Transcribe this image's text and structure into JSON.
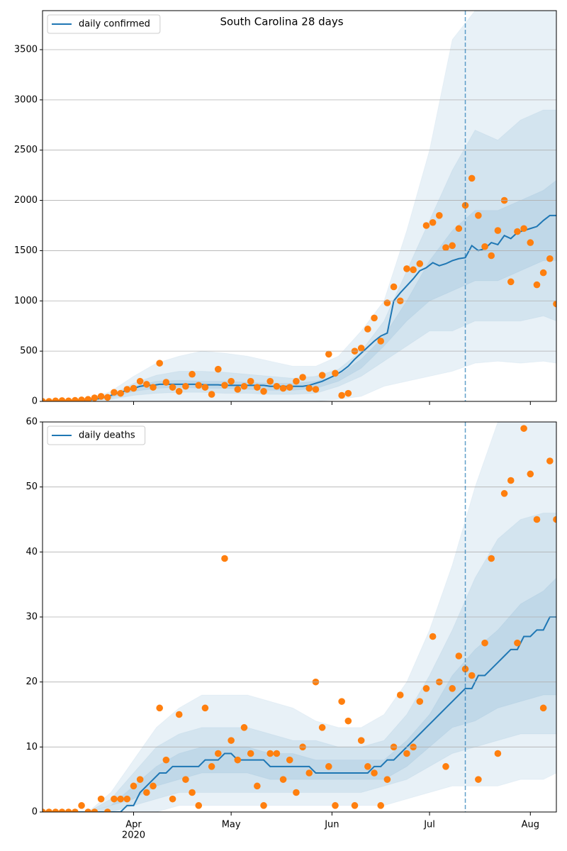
{
  "chart_data": [
    {
      "type": "line",
      "title": "South Carolina 28 days",
      "xlim": [
        3,
        161
      ],
      "xticks": [
        31,
        61,
        92,
        122,
        153
      ],
      "show_xtick_labels": false,
      "ylim": [
        0,
        3888
      ],
      "yticks": [
        0,
        500,
        1000,
        1500,
        2000,
        2500,
        3000,
        3500
      ],
      "grid": true,
      "legend": "upper left",
      "vline": 133,
      "x": [
        3,
        5,
        7,
        9,
        11,
        13,
        15,
        17,
        19,
        21,
        23,
        25,
        27,
        29,
        31,
        33,
        35,
        37,
        39,
        41,
        43,
        45,
        47,
        49,
        51,
        53,
        55,
        57,
        59,
        61,
        63,
        65,
        67,
        69,
        71,
        73,
        75,
        77,
        79,
        81,
        83,
        85,
        87,
        89,
        91,
        93,
        95,
        97,
        99,
        101,
        103,
        105,
        107,
        109,
        111,
        113,
        115,
        117,
        119,
        121,
        123,
        125,
        127,
        129,
        131,
        133,
        135,
        137,
        139,
        141,
        143,
        145,
        147,
        149,
        151,
        153,
        155,
        157,
        159,
        161
      ],
      "series": [
        {
          "name": "daily confirmed",
          "color": "#1f77b4",
          "values": [
            0,
            0,
            0,
            0,
            0,
            0,
            5,
            10,
            20,
            30,
            50,
            70,
            90,
            110,
            130,
            150,
            160,
            160,
            170,
            170,
            170,
            170,
            170,
            170,
            170,
            165,
            165,
            165,
            160,
            160,
            160,
            160,
            160,
            160,
            160,
            150,
            150,
            150,
            150,
            150,
            150,
            160,
            180,
            200,
            230,
            260,
            300,
            350,
            420,
            480,
            540,
            600,
            650,
            680,
            1000,
            1080,
            1150,
            1220,
            1300,
            1330,
            1380,
            1350,
            1370,
            1400,
            1420,
            1430,
            1550,
            1500,
            1520,
            1580,
            1560,
            1650,
            1620,
            1680,
            1700,
            1720,
            1740,
            1800,
            1850,
            1850
          ]
        }
      ],
      "points": {
        "color": "#ff7f0e",
        "values": [
          0,
          0,
          5,
          8,
          5,
          10,
          15,
          20,
          35,
          50,
          40,
          90,
          80,
          120,
          130,
          200,
          170,
          140,
          380,
          190,
          140,
          100,
          150,
          270,
          160,
          140,
          70,
          320,
          160,
          200,
          120,
          150,
          200,
          140,
          100,
          200,
          150,
          130,
          140,
          200,
          240,
          130,
          120,
          260,
          470,
          280,
          60,
          80,
          500,
          530,
          720,
          830,
          600,
          980,
          1140,
          1000,
          1320,
          1310,
          1370,
          1750,
          1780,
          1850,
          1530,
          1550,
          1720,
          1950,
          2220,
          1850,
          1540,
          1450,
          1700,
          2000,
          1190,
          1690,
          1720,
          1580,
          1160,
          1280,
          1420,
          970
        ]
      },
      "band_x": [
        3,
        10,
        17,
        24,
        31,
        38,
        45,
        52,
        59,
        66,
        73,
        80,
        87,
        94,
        101,
        108,
        115,
        122,
        129,
        136,
        143,
        150,
        157,
        161
      ],
      "bands": [
        {
          "lower": [
            0,
            0,
            0,
            0,
            0,
            0,
            0,
            0,
            0,
            0,
            0,
            0,
            0,
            20,
            50,
            150,
            200,
            250,
            300,
            380,
            400,
            380,
            400,
            380
          ],
          "upper": [
            0,
            0,
            20,
            100,
            250,
            380,
            450,
            500,
            480,
            450,
            400,
            350,
            350,
            450,
            700,
            1000,
            1700,
            2500,
            3600,
            3888,
            3888,
            3888,
            3888,
            3888
          ]
        },
        {
          "lower": [
            0,
            0,
            5,
            20,
            60,
            80,
            90,
            90,
            80,
            80,
            70,
            70,
            80,
            150,
            250,
            400,
            550,
            700,
            700,
            800,
            800,
            800,
            850,
            800
          ],
          "upper": [
            0,
            0,
            10,
            60,
            180,
            260,
            300,
            300,
            290,
            270,
            250,
            230,
            250,
            320,
            500,
            800,
            1300,
            1800,
            2300,
            2700,
            2600,
            2800,
            2900,
            2900
          ]
        },
        {
          "lower": [
            0,
            0,
            8,
            40,
            100,
            130,
            140,
            130,
            130,
            120,
            110,
            110,
            130,
            200,
            330,
            550,
            800,
            1000,
            1100,
            1200,
            1200,
            1300,
            1400,
            1400
          ],
          "upper": [
            0,
            0,
            12,
            50,
            150,
            200,
            210,
            200,
            200,
            190,
            180,
            180,
            200,
            260,
            420,
            650,
            1000,
            1400,
            1700,
            1900,
            1900,
            2000,
            2100,
            2200
          ]
        }
      ]
    },
    {
      "type": "line",
      "xlim": [
        3,
        161
      ],
      "xticks": [
        {
          "value": 31,
          "label": "Apr"
        },
        {
          "value": 61,
          "label": "May"
        },
        {
          "value": 92,
          "label": "Jun"
        },
        {
          "value": 122,
          "label": "Jul"
        },
        {
          "value": 153,
          "label": "Aug"
        }
      ],
      "x_year_label": "2020",
      "ylim": [
        0,
        60
      ],
      "yticks": [
        0,
        10,
        20,
        30,
        40,
        50,
        60
      ],
      "grid": true,
      "legend": "upper left",
      "vline": 133,
      "x": [
        3,
        5,
        7,
        9,
        11,
        13,
        15,
        17,
        19,
        21,
        23,
        25,
        27,
        29,
        31,
        33,
        35,
        37,
        39,
        41,
        43,
        45,
        47,
        49,
        51,
        53,
        55,
        57,
        59,
        61,
        63,
        65,
        67,
        69,
        71,
        73,
        75,
        77,
        79,
        81,
        83,
        85,
        87,
        89,
        91,
        93,
        95,
        97,
        99,
        101,
        103,
        105,
        107,
        109,
        111,
        113,
        115,
        117,
        119,
        121,
        123,
        125,
        127,
        129,
        131,
        133,
        135,
        137,
        139,
        141,
        143,
        145,
        147,
        149,
        151,
        153,
        155,
        157,
        159,
        161
      ],
      "series": [
        {
          "name": "daily deaths",
          "color": "#1f77b4",
          "values": [
            0,
            0,
            0,
            0,
            0,
            0,
            0,
            0,
            0,
            0,
            0,
            0,
            0,
            1,
            1,
            3,
            4,
            5,
            6,
            6,
            7,
            7,
            7,
            7,
            7,
            8,
            8,
            8,
            9,
            9,
            8,
            8,
            8,
            8,
            8,
            7,
            7,
            7,
            7,
            7,
            7,
            7,
            6,
            6,
            6,
            6,
            6,
            6,
            6,
            6,
            6,
            7,
            7,
            8,
            8,
            9,
            10,
            11,
            12,
            13,
            14,
            15,
            16,
            17,
            18,
            19,
            19,
            21,
            21,
            22,
            23,
            24,
            25,
            25,
            27,
            27,
            28,
            28,
            30,
            30
          ]
        }
      ],
      "points": {
        "color": "#ff7f0e",
        "values": [
          0,
          0,
          0,
          0,
          0,
          0,
          1,
          0,
          0,
          2,
          0,
          2,
          2,
          2,
          4,
          5,
          3,
          4,
          16,
          8,
          2,
          15,
          5,
          3,
          1,
          16,
          7,
          9,
          39,
          11,
          8,
          13,
          9,
          4,
          1,
          9,
          9,
          5,
          8,
          3,
          10,
          6,
          20,
          13,
          7,
          1,
          17,
          14,
          1,
          11,
          7,
          6,
          1,
          5,
          10,
          18,
          9,
          10,
          17,
          19,
          27,
          20,
          7,
          19,
          24,
          22,
          21,
          5,
          26,
          39,
          9,
          49,
          51,
          26,
          59,
          52,
          45,
          16,
          54,
          45
        ]
      },
      "band_x": [
        3,
        10,
        17,
        24,
        31,
        38,
        45,
        52,
        59,
        66,
        73,
        80,
        87,
        94,
        101,
        108,
        115,
        122,
        129,
        136,
        143,
        150,
        157,
        161
      ],
      "bands": [
        {
          "lower": [
            0,
            0,
            0,
            0,
            0,
            0,
            1,
            1,
            1,
            1,
            1,
            1,
            1,
            1,
            1,
            1,
            2,
            3,
            4,
            4,
            4,
            5,
            5,
            6
          ],
          "upper": [
            0,
            0,
            0,
            3,
            8,
            13,
            16,
            18,
            18,
            18,
            17,
            16,
            14,
            13,
            13,
            15,
            20,
            28,
            38,
            50,
            60,
            60,
            60,
            60
          ]
        },
        {
          "lower": [
            0,
            0,
            0,
            0,
            1,
            2,
            3,
            3,
            3,
            3,
            3,
            3,
            3,
            3,
            3,
            4,
            5,
            7,
            9,
            10,
            11,
            12,
            12,
            12
          ],
          "upper": [
            0,
            0,
            0,
            2,
            6,
            10,
            12,
            13,
            13,
            13,
            12,
            11,
            11,
            10,
            10,
            11,
            15,
            21,
            28,
            36,
            42,
            45,
            46,
            46
          ]
        },
        {
          "lower": [
            0,
            0,
            0,
            1,
            2,
            4,
            5,
            6,
            6,
            6,
            5,
            5,
            5,
            5,
            5,
            5,
            7,
            10,
            13,
            14,
            16,
            17,
            18,
            18
          ],
          "upper": [
            0,
            0,
            0,
            1,
            4,
            7,
            9,
            10,
            10,
            10,
            9,
            9,
            8,
            8,
            8,
            8,
            11,
            15,
            21,
            25,
            28,
            32,
            34,
            36
          ]
        }
      ]
    }
  ]
}
